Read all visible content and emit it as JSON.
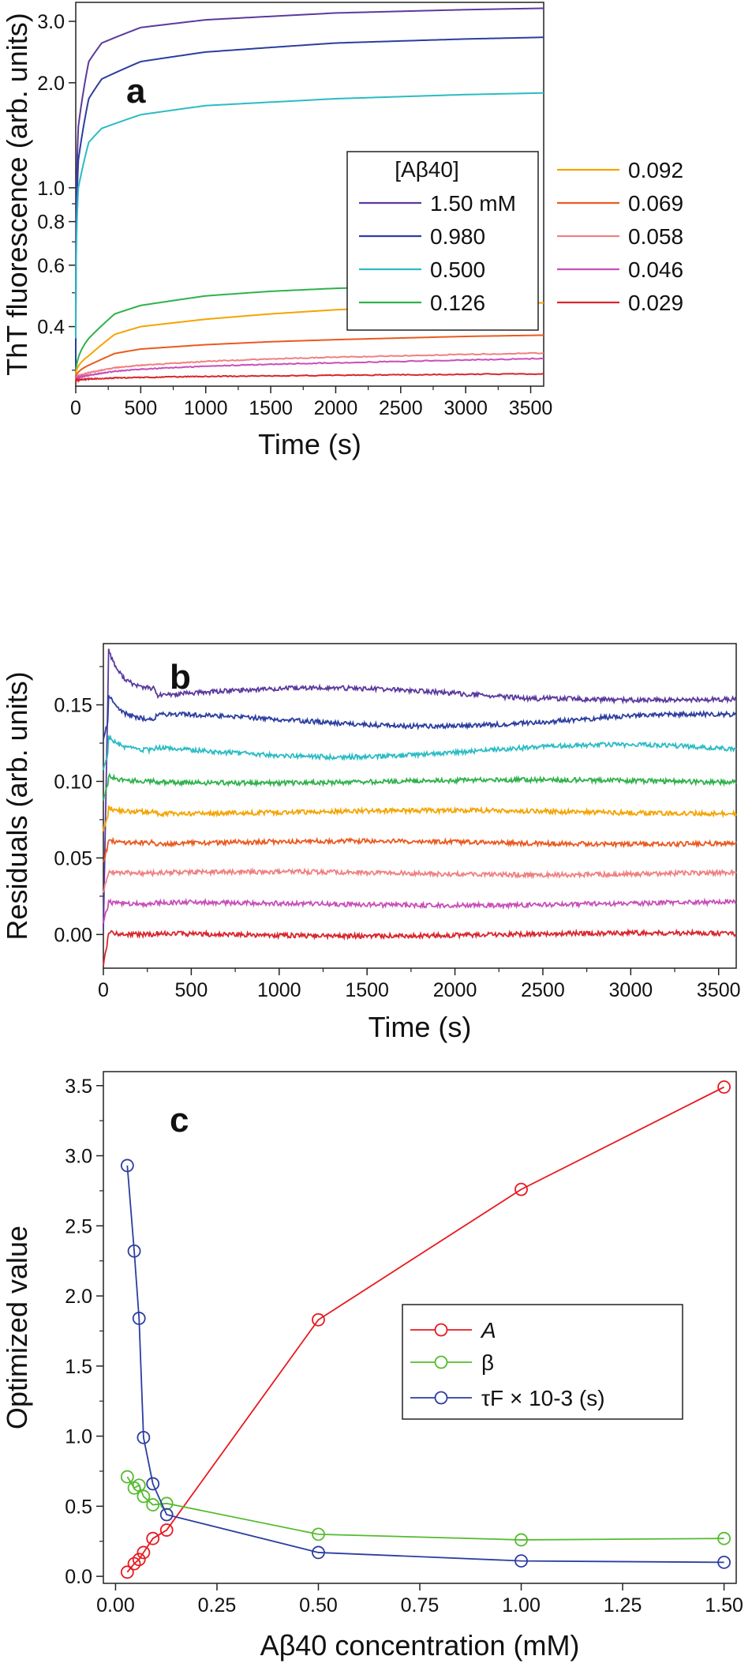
{
  "chart_data": [
    {
      "panel_label": "a",
      "type": "line",
      "xlabel": "Time (s)",
      "ylabel": "ThT fluorescence (arb. units)",
      "xlim": [
        0,
        3600
      ],
      "ylim": [
        0.27,
        3.4
      ],
      "yscale": "log",
      "xticks": [
        0,
        500,
        1000,
        1500,
        2000,
        2500,
        3000,
        3500
      ],
      "yticks": [
        0.4,
        0.6,
        0.8,
        1.0,
        2.0,
        3.0
      ],
      "ytick_labels": [
        "0.4",
        "0.6",
        "0.8",
        "1.0",
        "2.0",
        "3.0"
      ],
      "legend": {
        "title": "[Aβ40]",
        "placement": "upper-right",
        "entries": [
          "1.50 mM",
          "0.980",
          "0.500",
          "0.126",
          "0.092",
          "0.069",
          "0.058",
          "0.046",
          "0.029"
        ]
      },
      "series": [
        {
          "name": "1.50 mM",
          "color": "#5b3a9e",
          "y0": 0.3,
          "values_at_t": {
            "t": [
              20,
              100,
              200,
              500,
              1000,
              2000,
              3000,
              3600
            ],
            "y": [
              1.5,
              2.3,
              2.6,
              2.88,
              3.03,
              3.17,
              3.24,
              3.27
            ]
          }
        },
        {
          "name": "0.980",
          "color": "#2c3ea0",
          "y0": 0.3,
          "values_at_t": {
            "t": [
              20,
              100,
              200,
              500,
              1000,
              2000,
              3000,
              3600
            ],
            "y": [
              1.2,
              1.8,
              2.05,
              2.3,
              2.45,
              2.6,
              2.67,
              2.7
            ]
          }
        },
        {
          "name": "0.500",
          "color": "#2bbcc4",
          "y0": 0.37,
          "values_at_t": {
            "t": [
              20,
              100,
              200,
              500,
              1000,
              2000,
              3000,
              3600
            ],
            "y": [
              1.0,
              1.35,
              1.48,
              1.62,
              1.72,
              1.8,
              1.85,
              1.87
            ]
          }
        },
        {
          "name": "0.126",
          "color": "#2fb24c",
          "y0": 0.29,
          "tmax": 3400,
          "values_at_t": {
            "t": [
              100,
              300,
              500,
              1000,
              1500,
              2000,
              2500,
              3400
            ],
            "y": [
              0.37,
              0.435,
              0.46,
              0.49,
              0.505,
              0.515,
              0.52,
              0.525
            ]
          }
        },
        {
          "name": "0.092",
          "color": "#f5a400",
          "y0": 0.29,
          "values_at_t": {
            "t": [
              100,
              300,
              500,
              1000,
              1500,
              2000,
              2500,
              3000,
              3600
            ],
            "y": [
              0.33,
              0.38,
              0.4,
              0.42,
              0.435,
              0.447,
              0.455,
              0.462,
              0.468
            ]
          }
        },
        {
          "name": "0.069",
          "color": "#ea5a1f",
          "y0": 0.285,
          "values_at_t": {
            "t": [
              100,
              300,
              500,
              1000,
              1500,
              2000,
              2500,
              3000,
              3600
            ],
            "y": [
              0.31,
              0.335,
              0.345,
              0.355,
              0.362,
              0.367,
              0.371,
              0.375,
              0.378
            ]
          }
        },
        {
          "name": "0.058",
          "color": "#f08080",
          "y0": 0.283,
          "values_at_t": {
            "t": [
              100,
              300,
              500,
              1000,
              1500,
              2000,
              2500,
              3000,
              3600
            ],
            "y": [
              0.295,
              0.305,
              0.31,
              0.318,
              0.323,
              0.327,
              0.33,
              0.333,
              0.336
            ]
          }
        },
        {
          "name": "0.046",
          "color": "#c94fb8",
          "y0": 0.282,
          "values_at_t": {
            "t": [
              100,
              300,
              500,
              1000,
              1500,
              2000,
              2500,
              3000,
              3600
            ],
            "y": [
              0.29,
              0.298,
              0.302,
              0.308,
              0.312,
              0.315,
              0.318,
              0.321,
              0.324
            ]
          }
        },
        {
          "name": "0.029",
          "color": "#d8262e",
          "y0": 0.28,
          "values_at_t": {
            "t": [
              100,
              300,
              500,
              1000,
              1500,
              2000,
              2500,
              3000,
              3600
            ],
            "y": [
              0.283,
              0.285,
              0.286,
              0.288,
              0.289,
              0.29,
              0.291,
              0.292,
              0.293
            ]
          }
        }
      ]
    },
    {
      "panel_label": "b",
      "type": "line",
      "xlabel": "Time (s)",
      "ylabel": "Residuals (arb. units)",
      "xlim": [
        0,
        3600
      ],
      "ylim": [
        -0.022,
        0.19
      ],
      "xticks": [
        0,
        500,
        1000,
        1500,
        2000,
        2500,
        3000,
        3500
      ],
      "yticks": [
        0.0,
        0.05,
        0.1,
        0.15
      ],
      "ytick_labels": [
        "0.00",
        "0.05",
        "0.10",
        "0.15"
      ],
      "series": [
        {
          "name": "1.50 mM",
          "color": "#5b3a9e",
          "offset": 0.16,
          "initial_peak": 0.183
        },
        {
          "name": "0.980",
          "color": "#2c3ea0",
          "offset": 0.14,
          "initial_peak": 0.155
        },
        {
          "name": "0.500",
          "color": "#2bbcc4",
          "offset": 0.12,
          "initial_peak": 0.128
        },
        {
          "name": "0.126",
          "color": "#2fb24c",
          "offset": 0.1,
          "initial_peak": 0.103
        },
        {
          "name": "0.092",
          "color": "#f5a400",
          "offset": 0.08,
          "initial_peak": 0.082
        },
        {
          "name": "0.069",
          "color": "#ea5a1f",
          "offset": 0.06,
          "initial_peak": 0.061
        },
        {
          "name": "0.058",
          "color": "#f08080",
          "offset": 0.04,
          "initial_peak": 0.041
        },
        {
          "name": "0.046",
          "color": "#c94fb8",
          "offset": 0.02,
          "initial_peak": 0.021
        },
        {
          "name": "0.029",
          "color": "#d8262e",
          "offset": 0.0,
          "initial_peak": 0.001
        }
      ]
    },
    {
      "panel_label": "c",
      "type": "line",
      "markers": "open-circle",
      "xlabel": "Aβ40 concentration (mM)",
      "ylabel": "Optimized value",
      "xlim": [
        -0.03,
        1.53
      ],
      "ylim": [
        -0.05,
        3.6
      ],
      "xticks": [
        0.0,
        0.25,
        0.5,
        0.75,
        1.0,
        1.25,
        1.5
      ],
      "xtick_labels": [
        "0.00",
        "0.25",
        "0.50",
        "0.75",
        "1.00",
        "1.25",
        "1.50"
      ],
      "yticks": [
        0.0,
        0.5,
        1.0,
        1.5,
        2.0,
        2.5,
        3.0,
        3.5
      ],
      "ytick_labels": [
        "0.0",
        "0.5",
        "1.0",
        "1.5",
        "2.0",
        "2.5",
        "3.0",
        "3.5"
      ],
      "x": [
        0.029,
        0.046,
        0.058,
        0.069,
        0.092,
        0.126,
        0.5,
        1.0,
        1.5
      ],
      "legend": {
        "placement": "center-right"
      },
      "series": [
        {
          "name": "A",
          "color": "#e8191f",
          "values": [
            0.03,
            0.09,
            0.12,
            0.17,
            0.27,
            0.33,
            1.83,
            2.76,
            3.49
          ]
        },
        {
          "name": "β",
          "color": "#55bb2e",
          "values": [
            0.71,
            0.63,
            0.65,
            0.57,
            0.51,
            0.52,
            0.3,
            0.26,
            0.27
          ]
        },
        {
          "name": "τF × 10-3 (s)",
          "color": "#2c3ea0",
          "values": [
            2.93,
            2.32,
            1.84,
            0.99,
            0.66,
            0.44,
            0.17,
            0.11,
            0.1
          ]
        }
      ]
    }
  ]
}
